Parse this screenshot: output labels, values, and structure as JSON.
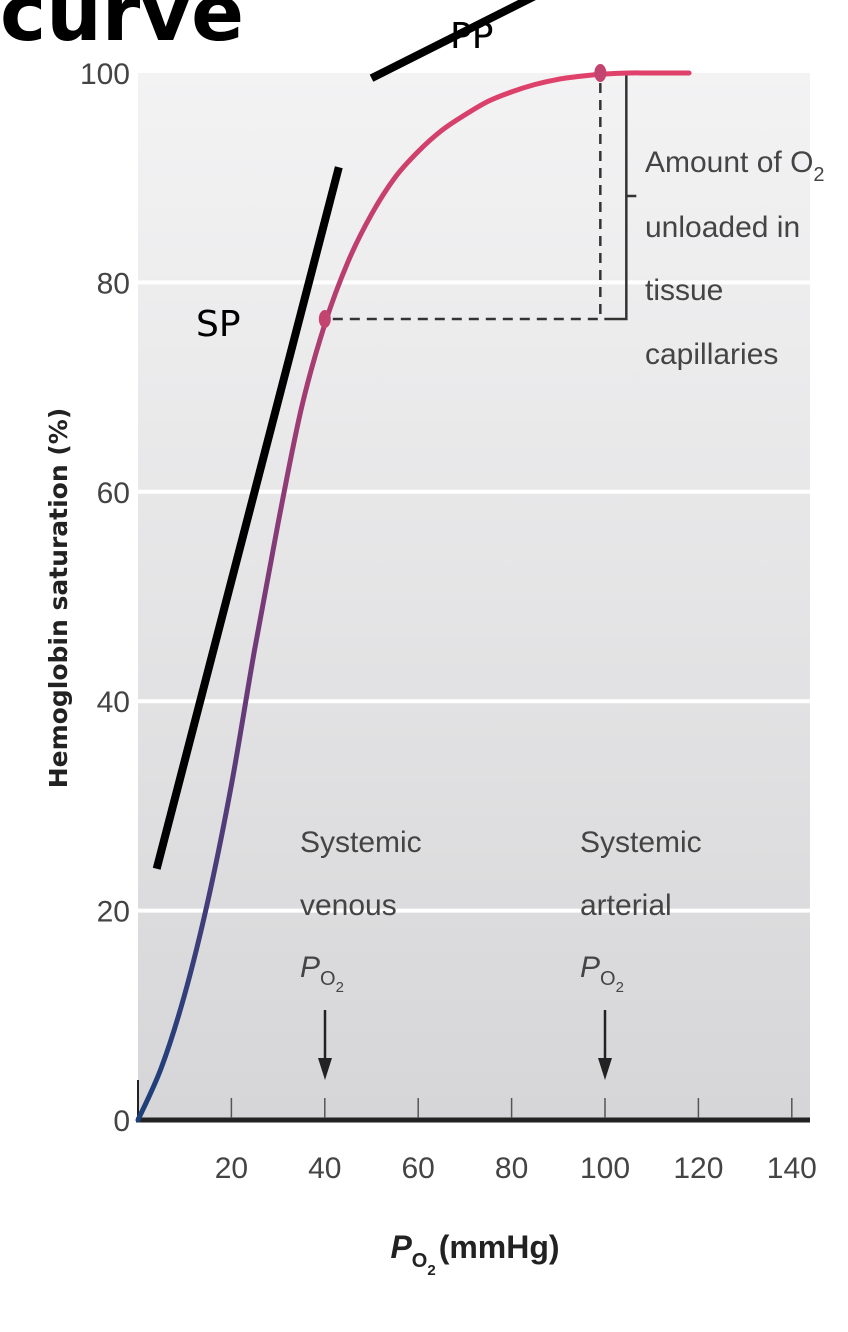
{
  "chart_data": {
    "type": "line",
    "title": "curve",
    "ylabel": "Hemoglobin saturation (%)",
    "xlabel": {
      "main": "P",
      "sub": "O",
      "subsub": "2",
      "unit": "(mmHg)"
    },
    "xlim": [
      0,
      145
    ],
    "ylim": [
      0,
      100
    ],
    "xticks": [
      "20",
      "40",
      "60",
      "80",
      "100",
      "120",
      "140"
    ],
    "yticks": [
      "0",
      "20",
      "40",
      "60",
      "80",
      "100"
    ],
    "grid": true,
    "series": [
      {
        "x": [
          0,
          5,
          10,
          15,
          20,
          25,
          30,
          35,
          40,
          45,
          50,
          55,
          60,
          65,
          70,
          75,
          80,
          85,
          90,
          95,
          100,
          105,
          110,
          118
        ],
        "y": [
          0,
          5,
          12,
          21,
          32,
          45,
          57,
          68,
          76,
          82,
          86.5,
          90,
          92.5,
          94.5,
          96,
          97.3,
          98.2,
          98.9,
          99.4,
          99.7,
          99.9,
          100,
          100,
          100
        ],
        "color_start": "#1c3f7a",
        "color_mid": "#7a3a78",
        "color_end": "#e0416a"
      }
    ],
    "points": [
      {
        "x": 40,
        "y": 76.5
      },
      {
        "x": 99,
        "y": 100
      }
    ],
    "annotations": {
      "unload_label": {
        "line1": "Amount of O",
        "line1_sub": "2",
        "line2": "unloaded in",
        "line3": "tissue",
        "line4": "capillaries"
      },
      "venous_label": {
        "line1": "Systemic",
        "line2": "venous",
        "p": "P",
        "sub": "O",
        "subsub": "2"
      },
      "arterial_label": {
        "line1": "Systemic",
        "line2": "arterial",
        "p": "P",
        "sub": "O",
        "subsub": "2"
      }
    },
    "overlay_lines": [
      {
        "label": "SP",
        "x1": 4,
        "y1": 24,
        "x2": 43,
        "y2": 91
      },
      {
        "label": "PP",
        "x1": 50,
        "y1": 99.5,
        "x2": 128,
        "y2": 117
      }
    ],
    "colors": {
      "background_top": "#f3f3f4",
      "background_bottom": "#d6d6d8",
      "grid": "#ffffff",
      "axis": "#222222",
      "overlay": "#000000",
      "point": "#c2446f"
    }
  }
}
